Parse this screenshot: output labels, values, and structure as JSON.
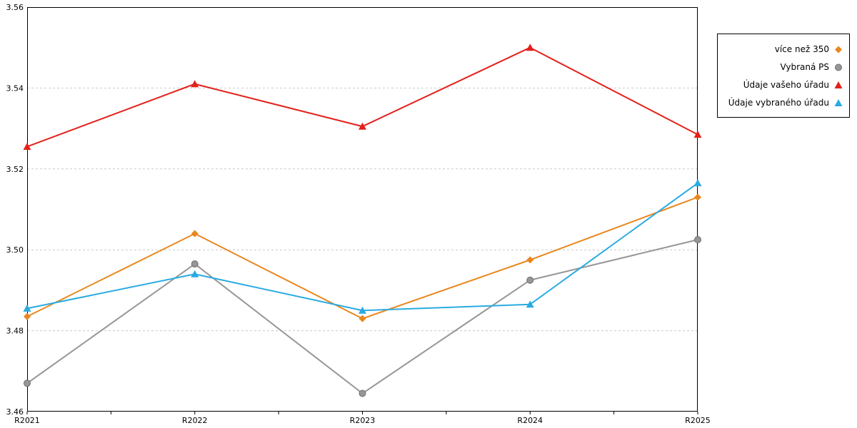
{
  "chart_data": {
    "type": "line",
    "categories": [
      "R2021",
      "R2022",
      "R2023",
      "R2024",
      "R2025"
    ],
    "series": [
      {
        "name": "více než 350",
        "color": "#E8871E",
        "marker": "diamond",
        "values": [
          3.4835,
          3.504,
          3.483,
          3.4975,
          3.513
        ]
      },
      {
        "name": "Vybraná PS",
        "color": "#969696",
        "marker": "circle",
        "values": [
          3.467,
          3.4965,
          3.4645,
          3.4925,
          3.5025
        ]
      },
      {
        "name": "Údaje vašeho úřadu",
        "color": "#E3211B",
        "marker": "triangle",
        "values": [
          3.5255,
          3.541,
          3.5305,
          3.55,
          3.5285
        ]
      },
      {
        "name": "Údaje vybraného úřadu",
        "color": "#29ABE2",
        "marker": "triangle",
        "values": [
          3.4855,
          3.494,
          3.485,
          3.4865,
          3.5165
        ]
      }
    ],
    "ylim": [
      3.46,
      3.56
    ],
    "yticks": [
      3.46,
      3.48,
      3.5,
      3.52,
      3.54,
      3.56
    ],
    "grid": "horizontal-dashed",
    "grid_color": "#c9c9c9",
    "frame_color": "#000000",
    "legend_position": "top-right"
  }
}
